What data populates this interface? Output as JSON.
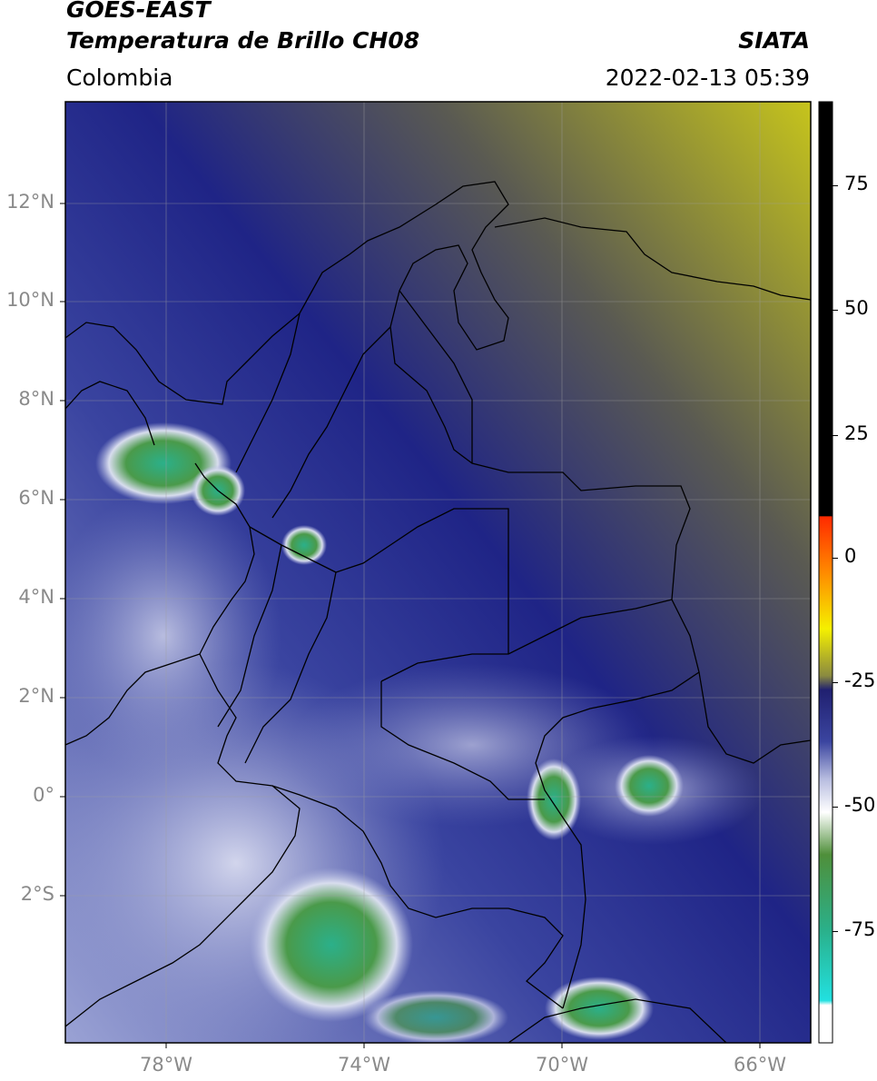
{
  "header": {
    "line1": "GOES-EAST",
    "line2": "Temperatura de Brillo CH08",
    "region": "Colombia",
    "brand": "SIATA",
    "timestamp": "2022-02-13 05:39"
  },
  "map": {
    "lat_labels": [
      "12°N",
      "10°N",
      "8°N",
      "6°N",
      "4°N",
      "2°N",
      "0°",
      "2°S"
    ],
    "lon_labels": [
      "78°W",
      "74°W",
      "70°W",
      "66°W"
    ]
  },
  "colorbar": {
    "ticks": [
      "75",
      "50",
      "25",
      "0",
      "-25",
      "-50",
      "-75"
    ],
    "colors": [
      "#000000",
      "#ff2a00",
      "#ffa000",
      "#f5f000",
      "#5b5b3a",
      "#1c1e7a",
      "#3b45a0",
      "#b8bde0",
      "#ffffff",
      "#4f8f3a",
      "#2ab08a",
      "#22e0e0",
      "#ffffff"
    ]
  }
}
